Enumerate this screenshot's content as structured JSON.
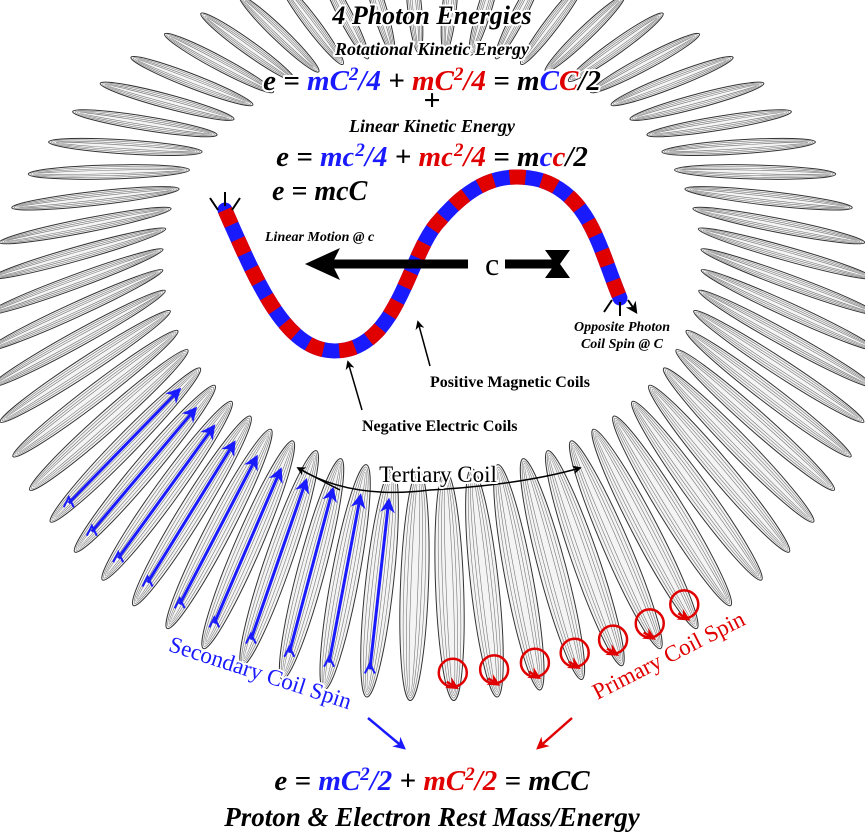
{
  "title": "4 Photon Energies",
  "rotational_label": "Rotational Kinetic Energy",
  "equation_1": [
    {
      "text": "e = ",
      "color": "#000000"
    },
    {
      "text": "mC",
      "color": "#1a1aff"
    },
    {
      "text": "2",
      "color": "#1a1aff",
      "sup": true
    },
    {
      "text": "/4",
      "color": "#1a1aff"
    },
    {
      "text": " + ",
      "color": "#000000"
    },
    {
      "text": "mC",
      "color": "#e00000"
    },
    {
      "text": "2",
      "color": "#e00000",
      "sup": true
    },
    {
      "text": "/4",
      "color": "#e00000"
    },
    {
      "text": " = m",
      "color": "#000000"
    },
    {
      "text": "C",
      "color": "#1a1aff"
    },
    {
      "text": "C",
      "color": "#e00000"
    },
    {
      "text": "/2",
      "color": "#000000"
    }
  ],
  "plus": "+",
  "linear_label": "Linear Kinetic Energy",
  "equation_2": [
    {
      "text": "e = ",
      "color": "#000000"
    },
    {
      "text": "mc",
      "color": "#1a1aff"
    },
    {
      "text": "2",
      "color": "#1a1aff",
      "sup": true
    },
    {
      "text": "/4",
      "color": "#1a1aff"
    },
    {
      "text": " + ",
      "color": "#000000"
    },
    {
      "text": "mc",
      "color": "#e00000"
    },
    {
      "text": "2",
      "color": "#e00000",
      "sup": true
    },
    {
      "text": "/4",
      "color": "#e00000"
    },
    {
      "text": " = m",
      "color": "#000000"
    },
    {
      "text": "c",
      "color": "#1a1aff"
    },
    {
      "text": "c",
      "color": "#e00000"
    },
    {
      "text": "/2",
      "color": "#000000"
    }
  ],
  "equation_short": "e = mcC",
  "linear_motion": "Linear Motion @ c",
  "c_label": "c",
  "opposite_line1": "Opposite Photon",
  "opposite_line2": "Coil Spin @ C",
  "positive_label": "Positive Magnetic Coils",
  "negative_label": "Negative Electric Coils",
  "tertiary_label": "Tertiary Coil",
  "secondary_label": "Secondary Coil Spin",
  "primary_label": "Primary Coil Spin",
  "equation_3": [
    {
      "text": "e = ",
      "color": "#000000"
    },
    {
      "text": "mC",
      "color": "#1a1aff"
    },
    {
      "text": "2",
      "color": "#1a1aff",
      "sup": true
    },
    {
      "text": "/2",
      "color": "#1a1aff"
    },
    {
      "text": " + ",
      "color": "#000000"
    },
    {
      "text": "mC",
      "color": "#e00000"
    },
    {
      "text": "2",
      "color": "#e00000",
      "sup": true
    },
    {
      "text": "/2",
      "color": "#e00000"
    },
    {
      "text": " = mCC",
      "color": "#000000"
    }
  ],
  "footer": "Proton & Electron Rest Mass/Energy"
}
